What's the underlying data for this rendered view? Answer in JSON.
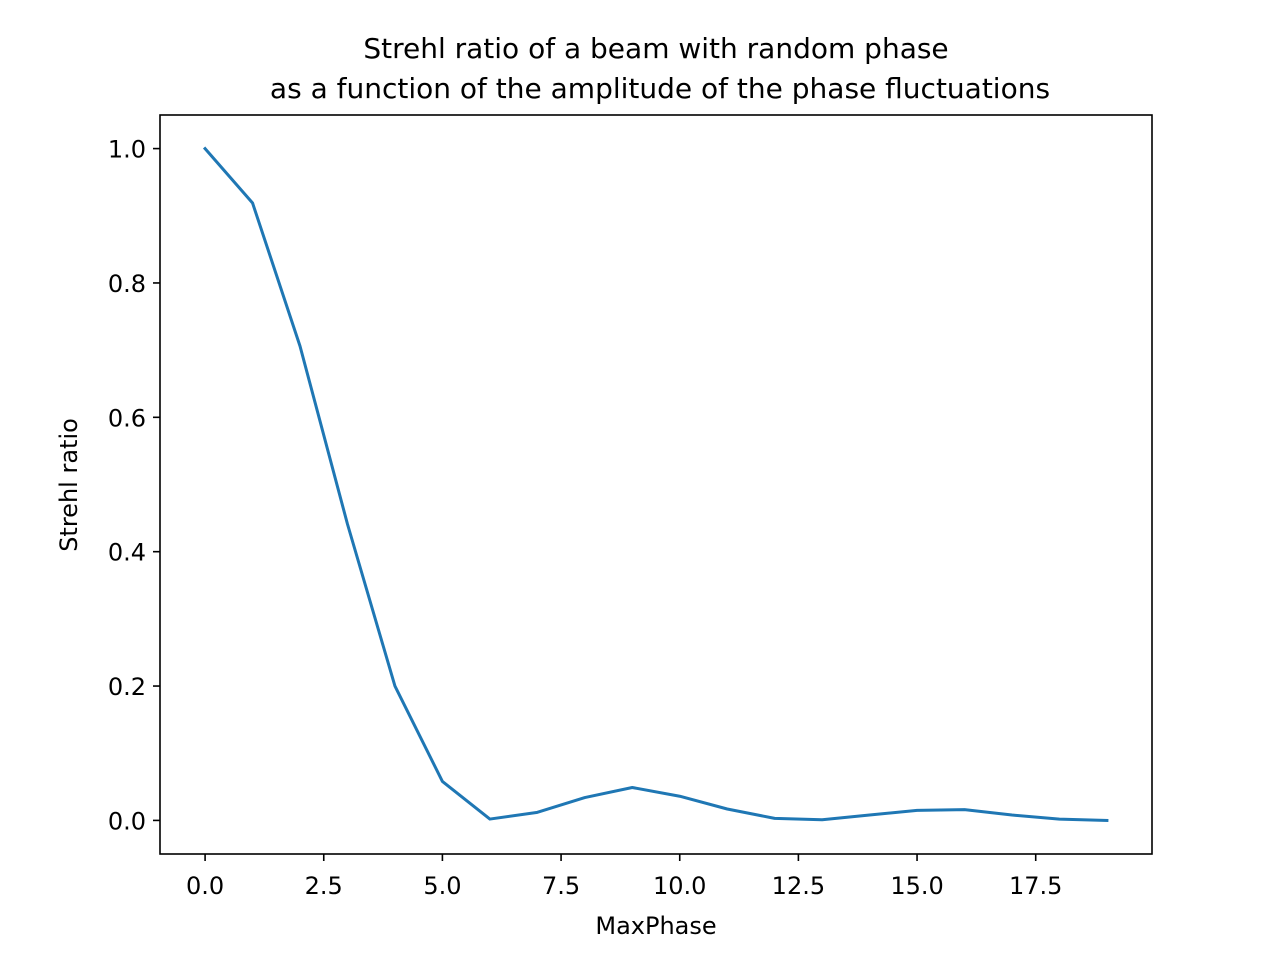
{
  "chart_data": {
    "type": "line",
    "title_line1": "Strehl ratio of a beam with random phase",
    "title_line2": "as a function of the amplitude of the phase fluctuations",
    "xlabel": "MaxPhase",
    "ylabel": "Strehl ratio",
    "xlim": [
      -0.95,
      19.95
    ],
    "ylim": [
      -0.05,
      1.05
    ],
    "xticks": [
      0.0,
      2.5,
      5.0,
      7.5,
      10.0,
      12.5,
      15.0,
      17.5
    ],
    "xtick_labels": [
      "0.0",
      "2.5",
      "5.0",
      "7.5",
      "10.0",
      "12.5",
      "15.0",
      "17.5"
    ],
    "yticks": [
      0.0,
      0.2,
      0.4,
      0.6,
      0.8,
      1.0
    ],
    "ytick_labels": [
      "0.0",
      "0.2",
      "0.4",
      "0.6",
      "0.8",
      "1.0"
    ],
    "grid": false,
    "legend": "none",
    "line_color": "#1f77b4",
    "x": [
      0,
      1,
      2,
      3,
      4,
      5,
      6,
      7,
      8,
      9,
      10,
      11,
      12,
      13,
      14,
      15,
      16,
      17,
      18,
      19
    ],
    "y": [
      1.0,
      0.919,
      0.706,
      0.441,
      0.2,
      0.058,
      0.002,
      0.012,
      0.034,
      0.049,
      0.036,
      0.017,
      0.003,
      0.001,
      0.008,
      0.015,
      0.016,
      0.008,
      0.002,
      0.0
    ]
  }
}
